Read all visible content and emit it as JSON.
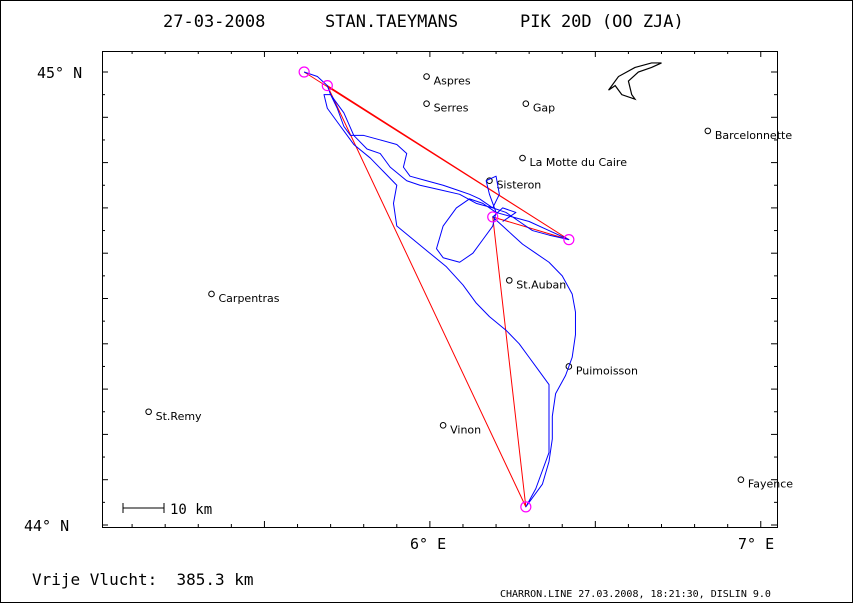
{
  "header": {
    "date": "27-03-2008",
    "pilot": "STAN.TAEYMANS",
    "glider": "PIK 20D (OO ZJA)"
  },
  "axes": {
    "y_top_label": "45° N",
    "y_bottom_label": "44° N",
    "x_label_6": "6° E",
    "x_label_7": "7° E"
  },
  "scale_bar": {
    "label": "10 km"
  },
  "footer": {
    "distance_label": "Vrije Vlucht:  385.3 km",
    "credits": "CHARRON.LINE 27.03.2008, 18:21:30, DISLIN 9.0"
  },
  "map": {
    "lat_range": [
      44.0,
      45.0
    ],
    "lon_range": [
      5.0,
      7.04
    ],
    "track_color": "#0000ff",
    "task_color": "#ff0000",
    "turnpoint_color": "#ff00ff",
    "places": [
      {
        "name": "Aspres",
        "lon": 5.99,
        "lat": 44.99
      },
      {
        "name": "Serres",
        "lon": 5.99,
        "lat": 44.93
      },
      {
        "name": "Gap",
        "lon": 6.29,
        "lat": 44.93
      },
      {
        "name": "Barcelonnette",
        "lon": 6.84,
        "lat": 44.87
      },
      {
        "name": "La Motte du Caire",
        "lon": 6.28,
        "lat": 44.81
      },
      {
        "name": "Sisteron",
        "lon": 6.18,
        "lat": 44.76
      },
      {
        "name": "St.Auban",
        "lon": 6.24,
        "lat": 44.54
      },
      {
        "name": "Carpentras",
        "lon": 5.34,
        "lat": 44.51
      },
      {
        "name": "Puimoisson",
        "lon": 6.42,
        "lat": 44.35
      },
      {
        "name": "St.Remy",
        "lon": 5.15,
        "lat": 44.25
      },
      {
        "name": "Vinon",
        "lon": 6.04,
        "lat": 44.22
      },
      {
        "name": "Fayence",
        "lon": 6.94,
        "lat": 44.1
      }
    ],
    "turnpoints": [
      {
        "lon": 5.62,
        "lat": 45.0
      },
      {
        "lon": 5.69,
        "lat": 44.97
      },
      {
        "lon": 6.42,
        "lat": 44.63
      },
      {
        "lon": 6.19,
        "lat": 44.68
      },
      {
        "lon": 6.29,
        "lat": 44.04
      }
    ],
    "task": [
      {
        "lon": 5.62,
        "lat": 45.0
      },
      {
        "lon": 6.42,
        "lat": 44.63
      },
      {
        "lon": 5.69,
        "lat": 44.97
      },
      {
        "lon": 6.29,
        "lat": 44.04
      },
      {
        "lon": 6.19,
        "lat": 44.68
      },
      {
        "lon": 6.42,
        "lat": 44.63
      }
    ],
    "track": [
      [
        5.62,
        45.0
      ],
      [
        5.66,
        44.99
      ],
      [
        5.69,
        44.97
      ],
      [
        5.7,
        44.95
      ],
      [
        5.72,
        44.92
      ],
      [
        5.74,
        44.88
      ],
      [
        5.76,
        44.86
      ],
      [
        5.8,
        44.86
      ],
      [
        5.85,
        44.85
      ],
      [
        5.9,
        44.84
      ],
      [
        5.93,
        44.82
      ],
      [
        5.92,
        44.79
      ],
      [
        5.94,
        44.77
      ],
      [
        5.99,
        44.76
      ],
      [
        6.04,
        44.75
      ],
      [
        6.08,
        44.74
      ],
      [
        6.12,
        44.73
      ],
      [
        6.15,
        44.72
      ],
      [
        6.19,
        44.7
      ],
      [
        6.23,
        44.69
      ],
      [
        6.27,
        44.67
      ],
      [
        6.31,
        44.65
      ],
      [
        6.36,
        44.64
      ],
      [
        6.42,
        44.63
      ],
      [
        6.36,
        44.65
      ],
      [
        6.3,
        44.67
      ],
      [
        6.25,
        44.68
      ],
      [
        6.2,
        44.69
      ],
      [
        6.16,
        44.71
      ],
      [
        6.12,
        44.72
      ],
      [
        6.08,
        44.7
      ],
      [
        6.04,
        44.66
      ],
      [
        6.02,
        44.61
      ],
      [
        6.04,
        44.59
      ],
      [
        6.09,
        44.58
      ],
      [
        6.13,
        44.6
      ],
      [
        6.16,
        44.63
      ],
      [
        6.19,
        44.66
      ],
      [
        6.2,
        44.69
      ],
      [
        6.18,
        44.73
      ],
      [
        6.17,
        44.76
      ],
      [
        6.2,
        44.77
      ],
      [
        6.21,
        44.73
      ],
      [
        6.19,
        44.7
      ],
      [
        6.14,
        44.71
      ],
      [
        6.09,
        44.73
      ],
      [
        6.03,
        44.74
      ],
      [
        5.97,
        44.75
      ],
      [
        5.93,
        44.76
      ],
      [
        5.88,
        44.79
      ],
      [
        5.85,
        44.82
      ],
      [
        5.81,
        44.83
      ],
      [
        5.77,
        44.86
      ],
      [
        5.74,
        44.91
      ],
      [
        5.7,
        44.95
      ],
      [
        5.68,
        44.95
      ],
      [
        5.69,
        44.92
      ],
      [
        5.73,
        44.88
      ],
      [
        5.77,
        44.84
      ],
      [
        5.82,
        44.81
      ],
      [
        5.86,
        44.78
      ],
      [
        5.9,
        44.75
      ],
      [
        5.89,
        44.71
      ],
      [
        5.9,
        44.66
      ],
      [
        5.95,
        44.63
      ],
      [
        6.0,
        44.6
      ],
      [
        6.05,
        44.57
      ],
      [
        6.1,
        44.53
      ],
      [
        6.14,
        44.49
      ],
      [
        6.18,
        44.46
      ],
      [
        6.23,
        44.43
      ],
      [
        6.27,
        44.4
      ],
      [
        6.3,
        44.37
      ],
      [
        6.33,
        44.34
      ],
      [
        6.36,
        44.31
      ],
      [
        6.36,
        44.26
      ],
      [
        6.36,
        44.21
      ],
      [
        6.36,
        44.16
      ],
      [
        6.34,
        44.12
      ],
      [
        6.32,
        44.08
      ],
      [
        6.29,
        44.04
      ],
      [
        6.31,
        44.06
      ],
      [
        6.34,
        44.09
      ],
      [
        6.36,
        44.14
      ],
      [
        6.37,
        44.19
      ],
      [
        6.37,
        44.24
      ],
      [
        6.38,
        44.29
      ],
      [
        6.41,
        44.33
      ],
      [
        6.43,
        44.37
      ],
      [
        6.44,
        44.42
      ],
      [
        6.44,
        44.47
      ],
      [
        6.43,
        44.51
      ],
      [
        6.4,
        44.55
      ],
      [
        6.36,
        44.58
      ],
      [
        6.32,
        44.6
      ],
      [
        6.28,
        44.62
      ],
      [
        6.25,
        44.64
      ],
      [
        6.22,
        44.66
      ],
      [
        6.19,
        44.68
      ],
      [
        6.22,
        44.7
      ],
      [
        6.26,
        44.69
      ],
      [
        6.22,
        44.67
      ]
    ],
    "coastline": [
      [
        6.54,
        44.96
      ],
      [
        6.57,
        44.99
      ],
      [
        6.62,
        45.01
      ],
      [
        6.67,
        45.02
      ],
      [
        6.7,
        45.02
      ],
      [
        6.67,
        45.01
      ],
      [
        6.63,
        45.0
      ],
      [
        6.6,
        44.98
      ],
      [
        6.61,
        44.95
      ],
      [
        6.62,
        44.94
      ],
      [
        6.58,
        44.95
      ],
      [
        6.56,
        44.97
      ]
    ]
  }
}
